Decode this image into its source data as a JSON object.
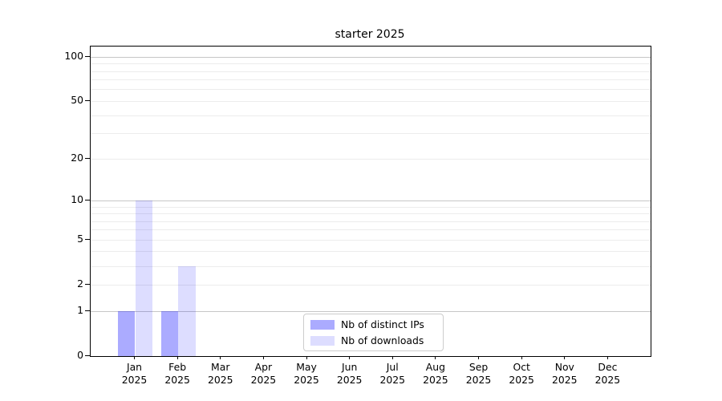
{
  "chart_data": {
    "type": "bar",
    "title": "starter 2025",
    "categories": [
      "Jan",
      "Feb",
      "Mar",
      "Apr",
      "May",
      "Jun",
      "Jul",
      "Aug",
      "Sep",
      "Oct",
      "Nov",
      "Dec"
    ],
    "category_year": "2025",
    "series": [
      {
        "name": "Nb of distinct IPs",
        "color": "#0000ff54",
        "values": [
          1,
          1,
          0,
          0,
          0,
          0,
          0,
          0,
          0,
          0,
          0,
          0
        ]
      },
      {
        "name": "Nb of downloads",
        "color": "#0000ff22",
        "values": [
          10,
          3,
          0,
          0,
          0,
          0,
          0,
          0,
          0,
          0,
          0,
          0
        ]
      }
    ],
    "yscale": "log1p",
    "ylim": [
      0,
      100
    ],
    "ytick_labels": [
      0,
      1,
      2,
      5,
      10,
      20,
      50,
      100
    ],
    "major_grid_values": [
      1,
      10,
      100
    ],
    "minor_grid_values": [
      2,
      3,
      4,
      5,
      6,
      7,
      8,
      9,
      20,
      30,
      40,
      50,
      60,
      70,
      80,
      90
    ],
    "grid": "horizontal",
    "xlabel": "",
    "ylabel": "",
    "legend_position": "lower center",
    "colors": {
      "major_grid": "#c6c6c6",
      "minor_grid": "#ececec",
      "spine": "#000000",
      "legend_border": "#cccccc",
      "background": "#ffffff"
    }
  }
}
